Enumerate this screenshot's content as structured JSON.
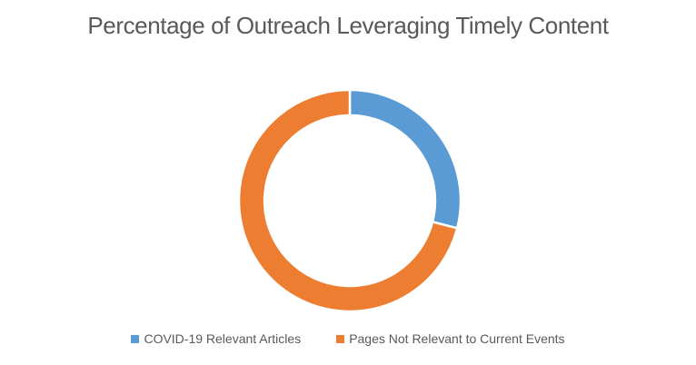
{
  "chart_data": {
    "type": "pie",
    "subtype": "donut",
    "title": "Percentage of Outreach Leveraging Timely Content",
    "categories": [
      "COVID-19 Relevant Articles",
      "Pages Not Relevant to Current Events"
    ],
    "values": [
      29,
      71
    ],
    "unit": "percent",
    "colors": [
      "#5B9BD5",
      "#ED7D31"
    ],
    "start_angle_deg": 0,
    "direction": "clockwise",
    "donut_hole_ratio": 0.77,
    "separator_color": "#FFFFFF",
    "legend_position": "bottom",
    "title_color": "#595959",
    "legend_text_color": "#595959",
    "background": "#FFFFFF",
    "grid": false,
    "data_labels": false
  }
}
